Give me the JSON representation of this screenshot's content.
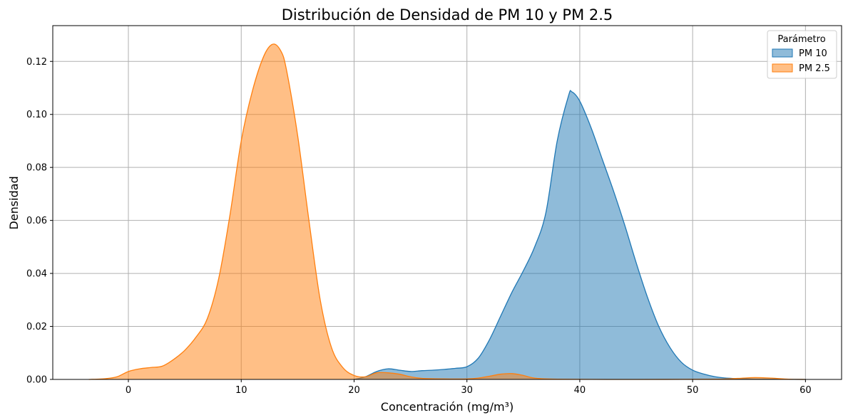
{
  "chart_data": {
    "type": "area",
    "title": "Distribución de Densidad de PM 10 y PM 2.5",
    "xlabel": "Concentración (mg/m³)",
    "ylabel": "Densidad",
    "xlim": [
      -6.7,
      63.2
    ],
    "ylim": [
      0,
      0.1335
    ],
    "xticks": [
      0,
      10,
      20,
      30,
      40,
      50,
      60
    ],
    "yticks": [
      0.0,
      0.02,
      0.04,
      0.06,
      0.08,
      0.1,
      0.12
    ],
    "xtick_labels": [
      "0",
      "10",
      "20",
      "30",
      "40",
      "50",
      "60"
    ],
    "ytick_labels": [
      "0.00",
      "0.02",
      "0.04",
      "0.06",
      "0.08",
      "0.10",
      "0.12"
    ],
    "grid": true,
    "legend": {
      "title": "Parámetro",
      "position": "top-right"
    },
    "series": [
      {
        "name": "PM 10",
        "color": "#1f77b4",
        "fill": "#8fb9da",
        "points": [
          [
            20,
            0.0
          ],
          [
            21,
            0.001
          ],
          [
            22,
            0.003
          ],
          [
            23,
            0.004
          ],
          [
            24,
            0.0035
          ],
          [
            25,
            0.003
          ],
          [
            26,
            0.0033
          ],
          [
            27,
            0.0035
          ],
          [
            28,
            0.0038
          ],
          [
            29,
            0.0042
          ],
          [
            30,
            0.0048
          ],
          [
            31,
            0.008
          ],
          [
            32,
            0.015
          ],
          [
            33,
            0.024
          ],
          [
            34,
            0.033
          ],
          [
            35,
            0.041
          ],
          [
            36,
            0.05
          ],
          [
            37,
            0.063
          ],
          [
            38,
            0.09
          ],
          [
            39,
            0.107
          ],
          [
            39.3,
            0.1085
          ],
          [
            40,
            0.105
          ],
          [
            41,
            0.095
          ],
          [
            42,
            0.083
          ],
          [
            43,
            0.071
          ],
          [
            44,
            0.058
          ],
          [
            45,
            0.044
          ],
          [
            46,
            0.031
          ],
          [
            47,
            0.02
          ],
          [
            48,
            0.012
          ],
          [
            49,
            0.0065
          ],
          [
            50,
            0.0035
          ],
          [
            51,
            0.002
          ],
          [
            52,
            0.001
          ],
          [
            53,
            0.0005
          ],
          [
            55,
            0.0002
          ],
          [
            57,
            0.0001
          ],
          [
            60,
            0.0
          ]
        ]
      },
      {
        "name": "PM 2.5",
        "color": "#ff7f0e",
        "fill": "#ffbc85",
        "points": [
          [
            -3.5,
            0.0
          ],
          [
            -2,
            0.0003
          ],
          [
            -1,
            0.001
          ],
          [
            0,
            0.003
          ],
          [
            1,
            0.004
          ],
          [
            2,
            0.0045
          ],
          [
            3,
            0.005
          ],
          [
            4,
            0.0075
          ],
          [
            5,
            0.011
          ],
          [
            6,
            0.016
          ],
          [
            7,
            0.023
          ],
          [
            8,
            0.038
          ],
          [
            9,
            0.062
          ],
          [
            10,
            0.09
          ],
          [
            11,
            0.109
          ],
          [
            12,
            0.122
          ],
          [
            12.8,
            0.1265
          ],
          [
            13.5,
            0.124
          ],
          [
            14,
            0.117
          ],
          [
            15,
            0.092
          ],
          [
            16,
            0.06
          ],
          [
            17,
            0.03
          ],
          [
            18,
            0.012
          ],
          [
            19,
            0.0045
          ],
          [
            20,
            0.0015
          ],
          [
            21,
            0.001
          ],
          [
            22,
            0.0025
          ],
          [
            23,
            0.0025
          ],
          [
            24,
            0.002
          ],
          [
            25,
            0.001
          ],
          [
            26,
            0.0004
          ],
          [
            28,
            0.0002
          ],
          [
            30,
            0.0002
          ],
          [
            31,
            0.0005
          ],
          [
            32,
            0.0012
          ],
          [
            33,
            0.002
          ],
          [
            34,
            0.0022
          ],
          [
            35,
            0.0015
          ],
          [
            36,
            0.0005
          ],
          [
            38,
            0.0001
          ],
          [
            45,
            0.0
          ],
          [
            52,
            0.0001
          ],
          [
            54,
            0.0004
          ],
          [
            55.5,
            0.0007
          ],
          [
            57,
            0.0005
          ],
          [
            58.5,
            0.0001
          ],
          [
            60,
            0.0
          ]
        ]
      }
    ]
  }
}
